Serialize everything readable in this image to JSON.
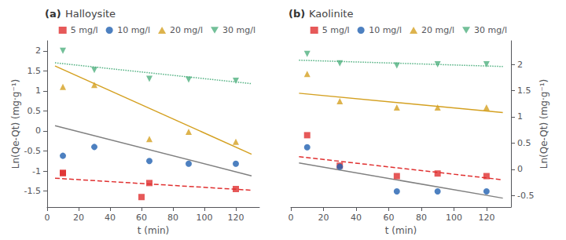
{
  "chart_data": [
    {
      "type": "scatter",
      "title": "(a)",
      "subtitle": "Halloysite",
      "x_label": "t (min)",
      "y_label": "Ln(Qe-Qt) (mg·g⁻¹)",
      "xlim": [
        0,
        135
      ],
      "xticks": [
        0,
        20,
        40,
        60,
        80,
        100,
        120
      ],
      "ylim": [
        -1.9,
        2.25
      ],
      "yticks": [
        -1.5,
        -1.0,
        -0.5,
        0.0,
        0.5,
        1.0,
        1.5,
        2.0
      ],
      "grid": false,
      "legend": "upper right",
      "series": [
        {
          "name": "5 mg/l",
          "type": "scatter",
          "color": "#e03030",
          "marker": "square",
          "x": [
            10,
            10,
            60,
            65,
            120
          ],
          "values": [
            -1.05,
            -1.05,
            -1.65,
            -1.3,
            -1.45
          ]
        },
        {
          "type": "line",
          "color": "#e03030",
          "line_style": "dashed",
          "x": [
            5,
            130
          ],
          "values": [
            -1.18,
            -1.48
          ]
        },
        {
          "name": "10 mg/l",
          "type": "scatter",
          "color": "#2060b0",
          "marker": "circle",
          "x": [
            10,
            30,
            65,
            90,
            120
          ],
          "values": [
            -0.62,
            -0.4,
            -0.75,
            -0.82,
            -0.82
          ]
        },
        {
          "type": "line",
          "color": "#808080",
          "line_style": "solid",
          "x": [
            5,
            130
          ],
          "values": [
            0.13,
            -1.12
          ]
        },
        {
          "name": "20 mg/l",
          "type": "scatter",
          "color": "#d4a020",
          "marker": "triangle",
          "x": [
            10,
            30,
            65,
            90,
            120
          ],
          "values": [
            1.1,
            1.15,
            -0.2,
            -0.02,
            -0.27
          ]
        },
        {
          "type": "line",
          "color": "#d4a020",
          "line_style": "solid",
          "x": [
            5,
            130
          ],
          "values": [
            1.62,
            -0.58
          ]
        },
        {
          "name": "30 mg/l",
          "type": "scatter",
          "color": "#50b080",
          "marker": "triangle-down",
          "x": [
            10,
            30,
            65,
            90,
            120
          ],
          "values": [
            2.0,
            1.52,
            1.3,
            1.28,
            1.25
          ]
        },
        {
          "type": "line",
          "color": "#50b080",
          "line_style": "dotted",
          "x": [
            5,
            130
          ],
          "values": [
            1.7,
            1.18
          ]
        }
      ]
    },
    {
      "type": "scatter",
      "title": "(b)",
      "subtitle": "Kaolinite",
      "x_label": "t (min)",
      "y_label": "Ln(Qe-Qt) (mg·g⁻¹)",
      "xlim": [
        0,
        135
      ],
      "xticks": [
        0,
        20,
        40,
        60,
        80,
        100,
        120
      ],
      "ylim": [
        -0.72,
        2.45
      ],
      "yticks": [
        -0.5,
        0.0,
        0.5,
        1.0,
        1.5,
        2.0
      ],
      "grid": false,
      "legend": "upper right",
      "series": [
        {
          "name": "5 mg/l",
          "type": "scatter",
          "color": "#e03030",
          "marker": "square",
          "x": [
            10,
            30,
            65,
            90,
            120
          ],
          "values": [
            0.65,
            0.07,
            -0.13,
            -0.08,
            -0.13
          ]
        },
        {
          "type": "line",
          "color": "#e03030",
          "line_style": "dashed",
          "x": [
            5,
            130
          ],
          "values": [
            0.24,
            -0.2
          ]
        },
        {
          "name": "10 mg/l",
          "type": "scatter",
          "color": "#2060b0",
          "marker": "circle",
          "x": [
            10,
            30,
            65,
            90,
            120
          ],
          "values": [
            0.42,
            0.05,
            -0.42,
            -0.42,
            -0.42
          ]
        },
        {
          "type": "line",
          "color": "#808080",
          "line_style": "solid",
          "x": [
            5,
            130
          ],
          "values": [
            0.12,
            -0.55
          ]
        },
        {
          "name": "20 mg/l",
          "type": "scatter",
          "color": "#d4a020",
          "marker": "triangle",
          "x": [
            10,
            30,
            65,
            90,
            120
          ],
          "values": [
            1.82,
            1.3,
            1.18,
            1.18,
            1.18
          ]
        },
        {
          "type": "line",
          "color": "#d4a020",
          "line_style": "solid",
          "x": [
            5,
            130
          ],
          "values": [
            1.45,
            1.08
          ]
        },
        {
          "name": "30 mg/l",
          "type": "scatter",
          "color": "#50b080",
          "marker": "triangle-down",
          "x": [
            10,
            30,
            65,
            90,
            120
          ],
          "values": [
            2.2,
            2.02,
            1.98,
            2.0,
            2.0
          ]
        },
        {
          "type": "line",
          "color": "#50b080",
          "line_style": "dotted",
          "x": [
            5,
            130
          ],
          "values": [
            2.08,
            1.96
          ]
        }
      ]
    }
  ]
}
